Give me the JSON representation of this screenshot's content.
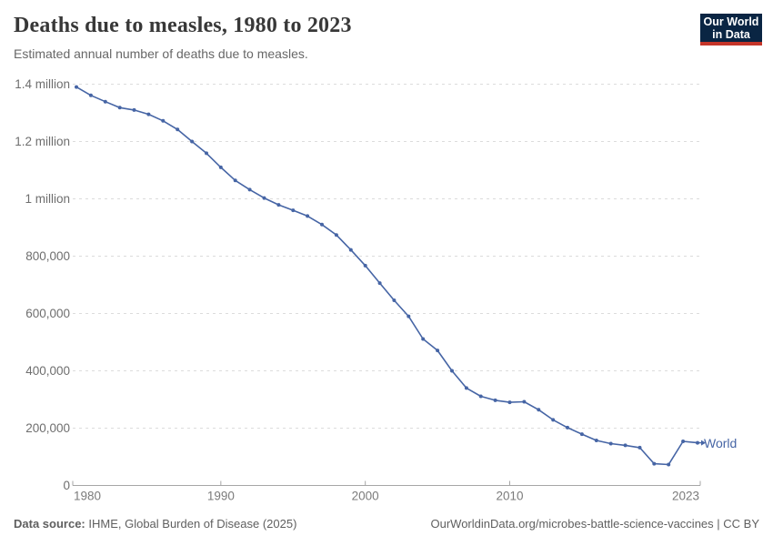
{
  "header": {
    "title": "Deaths due to measles, 1980 to 2023",
    "subtitle": "Estimated annual number of deaths due to measles."
  },
  "logo": {
    "line1": "Our World",
    "line2": "in Data"
  },
  "series_label": "World",
  "chart_data": {
    "type": "line",
    "title": "Deaths due to measles, 1980 to 2023",
    "subtitle": "Estimated annual number of deaths due to measles.",
    "xlabel": "",
    "ylabel": "",
    "xlim": [
      1980,
      2023
    ],
    "ylim": [
      0,
      1400000
    ],
    "grid": "horizontal-dashed",
    "legend_position": "end-of-line-label",
    "x": [
      1980,
      1981,
      1982,
      1983,
      1984,
      1985,
      1986,
      1987,
      1988,
      1989,
      1990,
      1991,
      1992,
      1993,
      1994,
      1995,
      1996,
      1997,
      1998,
      1999,
      2000,
      2001,
      2002,
      2003,
      2004,
      2005,
      2006,
      2007,
      2008,
      2009,
      2010,
      2011,
      2012,
      2013,
      2014,
      2015,
      2016,
      2017,
      2018,
      2019,
      2020,
      2021,
      2022,
      2023
    ],
    "series": [
      {
        "name": "World",
        "color": "#4665a5",
        "values": [
          1390000,
          1361000,
          1339000,
          1318000,
          1310000,
          1295000,
          1272000,
          1242000,
          1200000,
          1159000,
          1110000,
          1064000,
          1032000,
          1003000,
          979000,
          960000,
          940000,
          910000,
          874000,
          822000,
          767000,
          706000,
          646000,
          590000,
          511000,
          471000,
          400000,
          340000,
          311000,
          297000,
          290000,
          292000,
          264000,
          229000,
          202000,
          179000,
          157000,
          146000,
          140000,
          132000,
          76000,
          73000,
          154000,
          149000
        ]
      }
    ],
    "y_ticks": [
      {
        "value": 0,
        "label": "0"
      },
      {
        "value": 200000,
        "label": "200,000"
      },
      {
        "value": 400000,
        "label": "400,000"
      },
      {
        "value": 600000,
        "label": "600,000"
      },
      {
        "value": 800000,
        "label": "800,000"
      },
      {
        "value": 1000000,
        "label": "1 million"
      },
      {
        "value": 1200000,
        "label": "1.2 million"
      },
      {
        "value": 1400000,
        "label": "1.4 million"
      }
    ],
    "x_ticks": [
      {
        "value": 1980,
        "label": "1980",
        "anchor": "start"
      },
      {
        "value": 1990,
        "label": "1990",
        "anchor": "middle"
      },
      {
        "value": 2000,
        "label": "2000",
        "anchor": "middle"
      },
      {
        "value": 2010,
        "label": "2010",
        "anchor": "middle"
      },
      {
        "value": 2023,
        "label": "2023",
        "anchor": "end"
      }
    ]
  },
  "footer": {
    "source_label": "Data source:",
    "source_text": " IHME, Global Burden of Disease (2025)",
    "rights_text": "OurWorldinData.org/microbes-battle-science-vaccines | CC BY"
  },
  "colors": {
    "line": "#4665a5",
    "grid": "#dcdcdc",
    "axis": "#a6a6a6",
    "x_tick_text": "#7b7b7b",
    "y_tick_text": "#6e6e6e",
    "title": "#383838",
    "subtitle": "#676767",
    "footer_text": "#5f5f5f",
    "logo_background": "#0a2543",
    "logo_bar": "#c53529"
  }
}
